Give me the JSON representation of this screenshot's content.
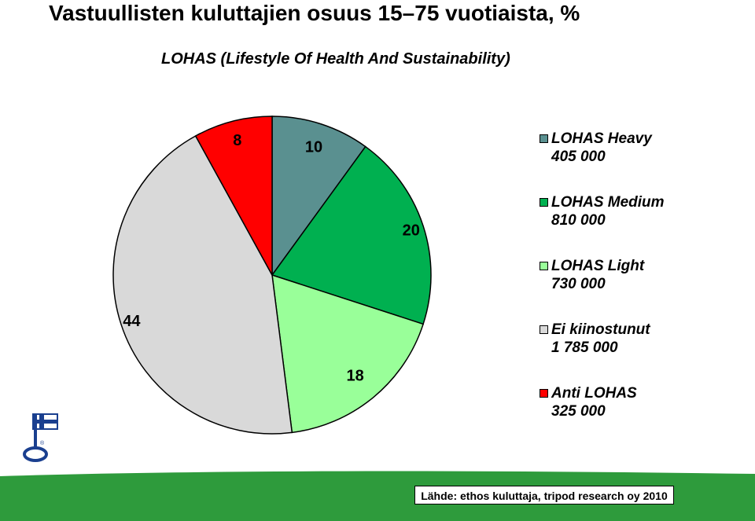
{
  "title": "Vastuullisten kuluttajien osuus 15–75 vuotiaista, %",
  "subtitle": "LOHAS (Lifestyle Of Health And Sustainability)",
  "source": "Lähde: ethos kuluttaja,  tripod research oy 2010",
  "colors": {
    "footer_band": "#2e9b3c",
    "border": "#000000"
  },
  "chart_data": {
    "type": "pie",
    "title": "Vastuullisten kuluttajien osuus 15–75 vuotiaista, %",
    "subtitle": "LOHAS (Lifestyle Of Health And Sustainability)",
    "legend_position": "right",
    "slices": [
      {
        "label": "LOHAS Heavy",
        "count": "405 000",
        "value": 10,
        "color": "#5a9090"
      },
      {
        "label": "LOHAS Medium",
        "count": "810 000",
        "value": 20,
        "color": "#00b050"
      },
      {
        "label": "LOHAS Light",
        "count": "730 000",
        "value": 18,
        "color": "#99ff99"
      },
      {
        "label": "Ei kiinostunut",
        "count": "1 785 000",
        "value": 44,
        "color": "#d9d9d9"
      },
      {
        "label": "Anti LOHAS",
        "count": "325 000",
        "value": 8,
        "color": "#ff0000"
      }
    ]
  }
}
